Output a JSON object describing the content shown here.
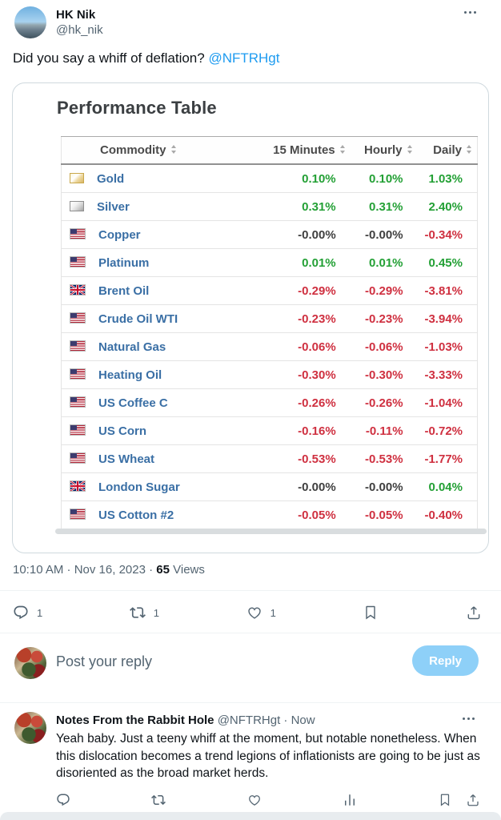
{
  "colors": {
    "accent_blue": "#1d9bf0",
    "positive_green": "#23a035",
    "negative_red": "#cf3040",
    "neutral_value": "#3f3f3f",
    "commodity_link_blue": "#3a6fa5",
    "reply_button_bg": "#8ed0f8"
  },
  "tweet": {
    "author": {
      "name": "HK Nik",
      "handle": "@hk_nik"
    },
    "text": "Did you say a whiff of deflation? ",
    "mention": "@NFTRHgt",
    "timestamp": "10:10 AM · Nov 16, 2023 · ",
    "views": {
      "count": "65",
      "label": " Views"
    },
    "actions": {
      "replies": "1",
      "reposts": "1",
      "likes": "1"
    }
  },
  "performance_card": {
    "title": "Performance Table",
    "columns": [
      "Commodity",
      "15 Minutes",
      "Hourly",
      "Daily"
    ],
    "rows": [
      {
        "commodity": "Gold",
        "icon": "gold",
        "values": [
          "0.10%",
          "0.10%",
          "1.03%"
        ],
        "value_states": [
          "pos",
          "pos",
          "pos"
        ]
      },
      {
        "commodity": "Silver",
        "icon": "silver",
        "values": [
          "0.31%",
          "0.31%",
          "2.40%"
        ],
        "value_states": [
          "pos",
          "pos",
          "pos"
        ]
      },
      {
        "commodity": "Copper",
        "icon": "us",
        "values": [
          "-0.00%",
          "-0.00%",
          "-0.34%"
        ],
        "value_states": [
          "zero",
          "zero",
          "neg"
        ]
      },
      {
        "commodity": "Platinum",
        "icon": "us",
        "values": [
          "0.01%",
          "0.01%",
          "0.45%"
        ],
        "value_states": [
          "pos",
          "pos",
          "pos"
        ]
      },
      {
        "commodity": "Brent Oil",
        "icon": "uk",
        "values": [
          "-0.29%",
          "-0.29%",
          "-3.81%"
        ],
        "value_states": [
          "neg",
          "neg",
          "neg"
        ]
      },
      {
        "commodity": "Crude Oil WTI",
        "icon": "us",
        "values": [
          "-0.23%",
          "-0.23%",
          "-3.94%"
        ],
        "value_states": [
          "neg",
          "neg",
          "neg"
        ]
      },
      {
        "commodity": "Natural Gas",
        "icon": "us",
        "values": [
          "-0.06%",
          "-0.06%",
          "-1.03%"
        ],
        "value_states": [
          "neg",
          "neg",
          "neg"
        ]
      },
      {
        "commodity": "Heating Oil",
        "icon": "us",
        "values": [
          "-0.30%",
          "-0.30%",
          "-3.33%"
        ],
        "value_states": [
          "neg",
          "neg",
          "neg"
        ]
      },
      {
        "commodity": "US Coffee C",
        "icon": "us",
        "values": [
          "-0.26%",
          "-0.26%",
          "-1.04%"
        ],
        "value_states": [
          "neg",
          "neg",
          "neg"
        ]
      },
      {
        "commodity": "US Corn",
        "icon": "us",
        "values": [
          "-0.16%",
          "-0.11%",
          "-0.72%"
        ],
        "value_states": [
          "neg",
          "neg",
          "neg"
        ]
      },
      {
        "commodity": "US Wheat",
        "icon": "us",
        "values": [
          "-0.53%",
          "-0.53%",
          "-1.77%"
        ],
        "value_states": [
          "neg",
          "neg",
          "neg"
        ]
      },
      {
        "commodity": "London Sugar",
        "icon": "uk",
        "values": [
          "-0.00%",
          "-0.00%",
          "0.04%"
        ],
        "value_states": [
          "zero",
          "zero",
          "pos"
        ]
      },
      {
        "commodity": "US Cotton #2",
        "icon": "us",
        "values": [
          "-0.05%",
          "-0.05%",
          "-0.40%"
        ],
        "value_states": [
          "neg",
          "neg",
          "neg"
        ]
      }
    ]
  },
  "reply_composer": {
    "placeholder": "Post your reply",
    "button_label": "Reply"
  },
  "reply_tweet": {
    "author": {
      "name": "Notes From the Rabbit Hole",
      "handle": "@NFTRHgt",
      "separator": " · ",
      "time": "Now"
    },
    "text": "Yeah baby. Just a teeny whiff at the moment, but notable nonetheless. When this dislocation becomes a trend legions of inflationists are going to be just as disoriented as the broad market herds."
  }
}
